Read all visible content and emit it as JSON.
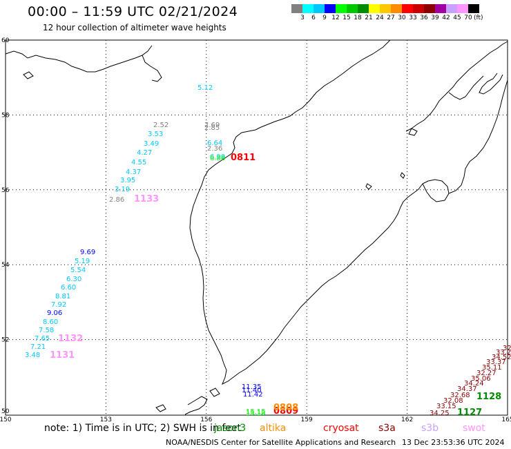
{
  "header": {
    "title": "00:00 – 11:59 UTC 02/21/2024",
    "subtitle": "12 hour collection of altimeter wave heights"
  },
  "colorbar": {
    "colors": [
      "#808080",
      "#00ffff",
      "#00c8ff",
      "#0000ff",
      "#00ff00",
      "#00c800",
      "#008c00",
      "#ffff00",
      "#ffc800",
      "#ff8c00",
      "#ff0000",
      "#c80000",
      "#8c0000",
      "#a000a0",
      "#c8a0ff",
      "#ff96ff",
      "#000000"
    ],
    "labels": [
      "3",
      "6",
      "9",
      "12",
      "15",
      "18",
      "21",
      "24",
      "27",
      "30",
      "33",
      "36",
      "39",
      "42",
      "45",
      "70"
    ],
    "unit": "(ft)"
  },
  "axes": {
    "x_ticks": [
      "150",
      "153",
      "156",
      "159",
      "162",
      "165"
    ],
    "y_ticks": [
      "60",
      "58",
      "56",
      "54",
      "52",
      "50"
    ],
    "lon_range": [
      150,
      165
    ],
    "lat_range": [
      50,
      60
    ]
  },
  "tracks": {
    "track_1133": [
      {
        "v": "5.12",
        "c": "#00c8ff"
      },
      {
        "v": "2.52",
        "c": "#808080"
      },
      {
        "v": "3.53",
        "c": "#00c8ff"
      },
      {
        "v": "3.49",
        "c": "#00c8ff"
      },
      {
        "v": "4.27",
        "c": "#00c8ff"
      },
      {
        "v": "4.55",
        "c": "#00c8ff"
      },
      {
        "v": "4.37",
        "c": "#00c8ff"
      },
      {
        "v": "3.95",
        "c": "#00c8ff"
      },
      {
        "v": "3.19",
        "c": "#00c8ff"
      },
      {
        "v": "2.86",
        "c": "#808080"
      }
    ],
    "track_0811": [
      {
        "v": "2.69",
        "c": "#808080"
      },
      {
        "v": "2.85",
        "c": "#808080"
      },
      {
        "v": "6.64",
        "c": "#00c8ff"
      },
      {
        "v": "2.36",
        "c": "#808080"
      },
      {
        "v": "6.99",
        "c": "#00c8ff"
      },
      {
        "v": "6.86",
        "c": "#00ff00"
      }
    ],
    "track_1132": [
      {
        "v": "9.69",
        "c": "#0000ff"
      },
      {
        "v": "5.19",
        "c": "#00c8ff"
      },
      {
        "v": "5.54",
        "c": "#00c8ff"
      },
      {
        "v": "6.30",
        "c": "#00c8ff"
      },
      {
        "v": "6.60",
        "c": "#00c8ff"
      },
      {
        "v": "8.81",
        "c": "#00c8ff"
      },
      {
        "v": "7.92",
        "c": "#00c8ff"
      },
      {
        "v": "9.06",
        "c": "#0000ff"
      },
      {
        "v": "8.60",
        "c": "#00c8ff"
      },
      {
        "v": "7.58",
        "c": "#00c8ff"
      },
      {
        "v": "7.65",
        "c": "#00c8ff"
      },
      {
        "v": "7.21",
        "c": "#00c8ff"
      },
      {
        "v": "3.48",
        "c": "#00c8ff"
      }
    ],
    "track_south": [
      {
        "v": "11.35",
        "c": "#0000ff"
      },
      {
        "v": "11.40",
        "c": "#0000ff"
      },
      {
        "v": "11.42",
        "c": "#0000ff"
      },
      {
        "v": "15.15",
        "c": "#00ff00"
      },
      {
        "v": "15.18",
        "c": "#00ff00"
      }
    ],
    "track_1128": [
      {
        "v": "34.25",
        "c": "#8c0000"
      },
      {
        "v": "33.15",
        "c": "#8c0000"
      },
      {
        "v": "32.08",
        "c": "#8c0000"
      },
      {
        "v": "32.68",
        "c": "#8c0000"
      },
      {
        "v": "34.37",
        "c": "#8c0000"
      },
      {
        "v": "34.24",
        "c": "#8c0000"
      },
      {
        "v": "35.06",
        "c": "#8c0000"
      },
      {
        "v": "32.27",
        "c": "#8c0000"
      },
      {
        "v": "35.11",
        "c": "#8c0000"
      },
      {
        "v": "33.37",
        "c": "#8c0000"
      },
      {
        "v": "34.52",
        "c": "#8c0000"
      },
      {
        "v": "33.2",
        "c": "#8c0000"
      },
      {
        "v": "32",
        "c": "#8c0000"
      }
    ]
  },
  "pass_labels": [
    {
      "text": "1133",
      "c": "#ff96ff"
    },
    {
      "text": "0811",
      "c": "#ff0000"
    },
    {
      "text": "1132",
      "c": "#ff96ff"
    },
    {
      "text": "1131",
      "c": "#ff96ff"
    },
    {
      "text": "0809",
      "c": "#ff0000"
    },
    {
      "text": "0808",
      "c": "#ff8c00"
    },
    {
      "text": "1128",
      "c": "#008c00"
    },
    {
      "text": "1127",
      "c": "#008c00"
    }
  ],
  "footer": {
    "note": "note:  1) Time is in UTC;  2) SWH is in feet",
    "satellites": [
      {
        "name": "jason3",
        "c": "#008c00"
      },
      {
        "name": "altika",
        "c": "#ff8c00"
      },
      {
        "name": "cryosat",
        "c": "#ff0000"
      },
      {
        "name": "s3a",
        "c": "#8c0000"
      },
      {
        "name": "s3b",
        "c": "#c8a0ff"
      },
      {
        "name": "swot",
        "c": "#ff96ff"
      }
    ],
    "credit": "NOAA/NESDIS Center for Satellite Applications and Research",
    "timestamp": "13 Dec 23:53:36 UTC 2024"
  }
}
